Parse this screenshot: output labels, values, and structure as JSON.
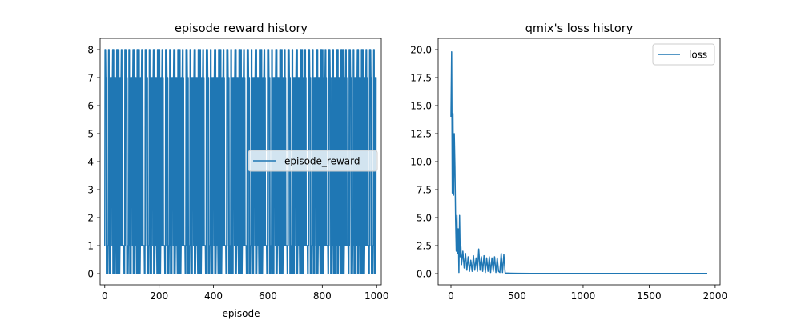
{
  "chart_data": [
    {
      "type": "line",
      "title": "episode reward history",
      "xlabel": "episode",
      "ylabel": "",
      "xlim": [
        -17,
        1017
      ],
      "ylim": [
        -0.4,
        8.4
      ],
      "xticks": [
        0,
        200,
        400,
        600,
        800,
        1000
      ],
      "yticks": [
        0,
        1,
        2,
        3,
        4,
        5,
        6,
        7,
        8
      ],
      "xtick_labels": [
        "0",
        "200",
        "400",
        "600",
        "800",
        "1000"
      ],
      "ytick_labels": [
        "0",
        "1",
        "2",
        "3",
        "4",
        "5",
        "6",
        "7",
        "8"
      ],
      "legend_position": "center-right",
      "line_color": "#1f77b4",
      "series": [
        {
          "name": "episode_reward",
          "x_range": [
            0,
            1000
          ],
          "values_cycle": [
            1,
            7,
            8,
            0,
            1,
            7,
            1,
            8,
            0,
            7,
            1,
            0,
            8,
            1,
            7,
            0,
            1,
            8,
            7,
            1,
            0,
            7,
            8,
            1,
            0,
            1,
            7,
            8,
            1,
            7,
            0,
            8,
            1,
            7,
            1,
            0,
            7,
            8,
            1,
            0,
            7,
            1,
            8,
            7,
            0,
            1,
            7,
            8,
            1,
            0
          ]
        }
      ]
    },
    {
      "type": "line",
      "title": "qmix's loss history",
      "xlabel": "",
      "ylabel": "",
      "xlim": [
        -97,
        2037
      ],
      "ylim": [
        -1,
        21
      ],
      "xticks": [
        0,
        500,
        1000,
        1500,
        2000
      ],
      "yticks": [
        0.0,
        2.5,
        5.0,
        7.5,
        10.0,
        12.5,
        15.0,
        17.5,
        20.0
      ],
      "xtick_labels": [
        "0",
        "500",
        "1000",
        "1500",
        "2000"
      ],
      "ytick_labels": [
        "0.0",
        "2.5",
        "5.0",
        "7.5",
        "10.0",
        "12.5",
        "15.0",
        "17.5",
        "20.0"
      ],
      "legend_position": "top-right",
      "line_color": "#1f77b4",
      "series": [
        {
          "name": "loss",
          "x": [
            0,
            5,
            10,
            15,
            20,
            25,
            30,
            35,
            40,
            45,
            50,
            55,
            60,
            65,
            70,
            75,
            80,
            90,
            100,
            110,
            120,
            130,
            140,
            150,
            160,
            170,
            180,
            190,
            200,
            210,
            220,
            230,
            240,
            250,
            260,
            270,
            280,
            290,
            300,
            310,
            320,
            330,
            340,
            350,
            360,
            370,
            380,
            390,
            400,
            410,
            450,
            500,
            600,
            800,
            1000,
            1200,
            1400,
            1600,
            1800,
            1940
          ],
          "values": [
            14.0,
            19.8,
            7.2,
            14.3,
            7.0,
            12.5,
            9.5,
            4.8,
            2.0,
            5.2,
            1.8,
            4.0,
            0.1,
            5.2,
            1.5,
            2.4,
            0.8,
            2.0,
            0.5,
            1.8,
            0.3,
            1.5,
            0.2,
            1.2,
            0.2,
            1.6,
            0.3,
            1.4,
            0.2,
            2.2,
            0.3,
            1.5,
            0.2,
            1.6,
            0.1,
            1.4,
            0.2,
            1.5,
            0.1,
            1.4,
            0.2,
            1.5,
            0.1,
            1.4,
            0.2,
            0.1,
            1.8,
            0.1,
            1.7,
            0.05,
            0.04,
            0.03,
            0.02,
            0.02,
            0.02,
            0.02,
            0.02,
            0.02,
            0.02,
            0.02
          ]
        }
      ]
    }
  ]
}
